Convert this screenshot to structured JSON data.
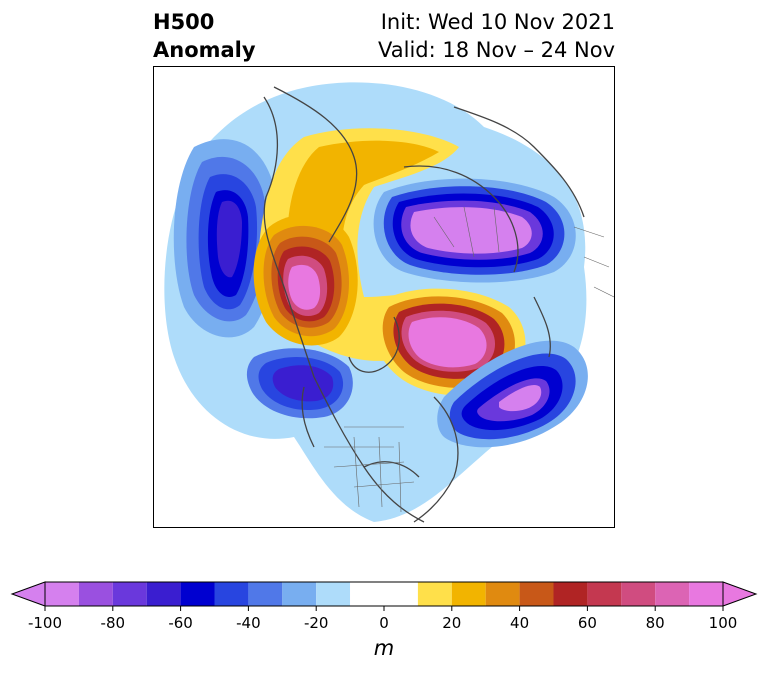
{
  "title": {
    "left_line1": "H500",
    "left_line2": "Anomaly",
    "right_line1": "Init: Wed 10 Nov 2021",
    "right_line2": "Valid: 18 Nov – 24 Nov"
  },
  "colorbar": {
    "unit": "m",
    "ticks": [
      "-100",
      "-80",
      "-60",
      "-40",
      "-20",
      "0",
      "20",
      "40",
      "60",
      "80",
      "100"
    ],
    "levels": [
      -100,
      -90,
      -80,
      -70,
      -60,
      -50,
      -40,
      -30,
      -20,
      -10,
      10,
      20,
      30,
      40,
      50,
      60,
      70,
      80,
      90,
      100
    ],
    "colors": [
      "#d580ee",
      "#9a50e0",
      "#6a38dc",
      "#3a1ed0",
      "#0000d0",
      "#2845e0",
      "#5078e8",
      "#78aef0",
      "#aedcfa",
      "#ffffff",
      "#ffe04a",
      "#f2b400",
      "#e08a10",
      "#c85818",
      "#b02424",
      "#c43850",
      "#d04c80",
      "#dc64b4",
      "#e878e0"
    ]
  }
}
